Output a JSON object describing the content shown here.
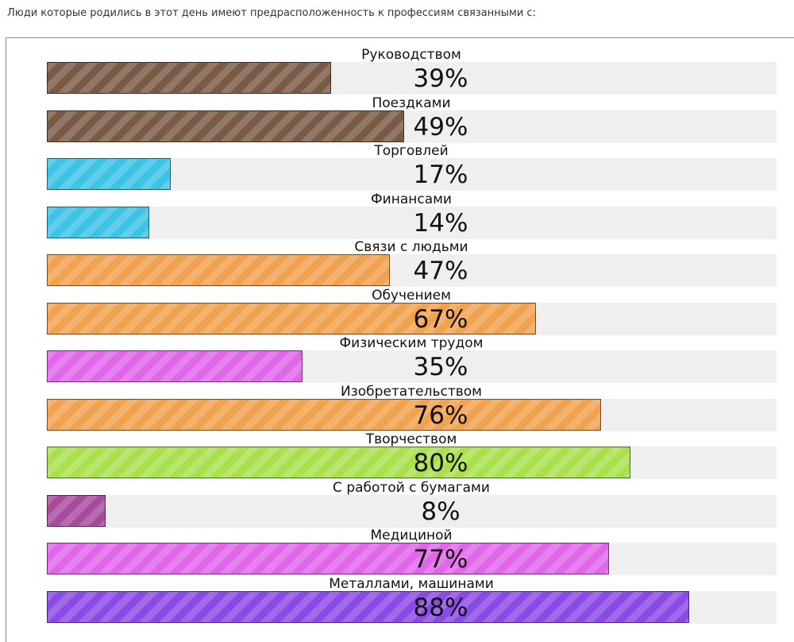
{
  "heading": "Люди которые родились в этот день имеют предрасположенность к профессиям связанными с:",
  "chart_data": {
    "type": "bar",
    "orientation": "horizontal",
    "categories": [
      "Руководством",
      "Поездками",
      "Торговлей",
      "Финансами",
      "Связи с людьми",
      "Обучением",
      "Физическим трудом",
      "Изобретательством",
      "Творчеством",
      "С работой с бумагами",
      "Медициной",
      "Металлами, машинами"
    ],
    "values": [
      39,
      49,
      17,
      14,
      47,
      67,
      35,
      76,
      80,
      8,
      77,
      88
    ],
    "value_labels": [
      "39%",
      "49%",
      "17%",
      "14%",
      "47%",
      "67%",
      "35%",
      "76%",
      "80%",
      "8%",
      "77%",
      "88%"
    ],
    "colors": [
      "#7a5a44",
      "#7a5a44",
      "#3cc3e6",
      "#3cc3e6",
      "#f0a24e",
      "#f0a24e",
      "#e066ea",
      "#f0a24e",
      "#a8e04e",
      "#a74a9c",
      "#e066ea",
      "#8a4ae6"
    ],
    "xlim": [
      0,
      100
    ],
    "grid": false,
    "legend": "none"
  }
}
